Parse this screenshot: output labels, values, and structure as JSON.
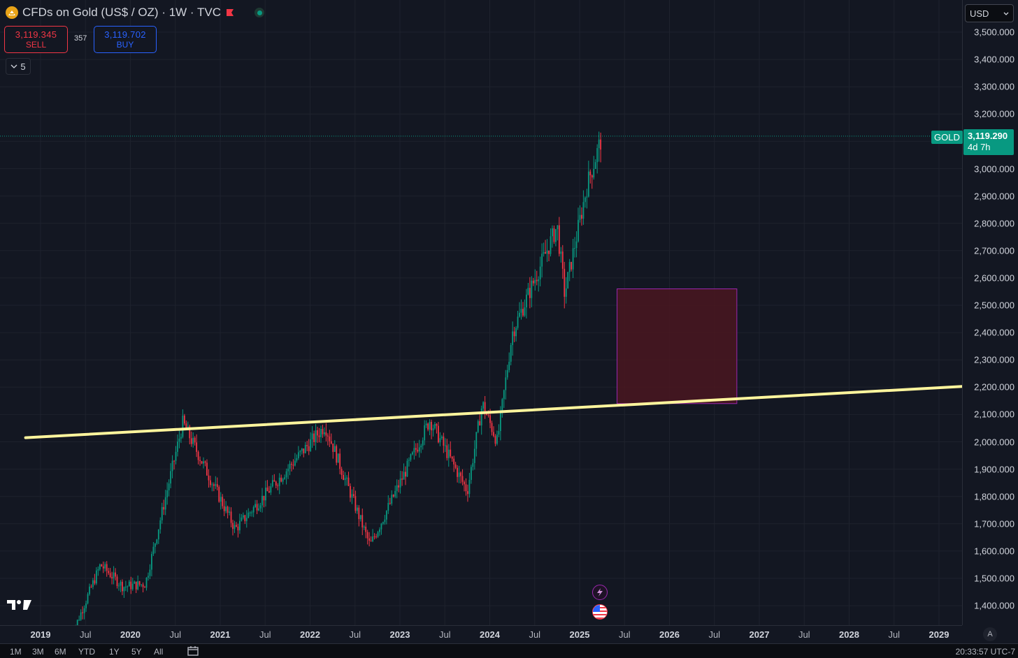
{
  "header": {
    "title": "CFDs on Gold (US$ / OZ) · 1W · TVC",
    "icon": "gold-coin-icon",
    "flag_icon": "red-flag-icon",
    "status_icon": "market-open-dot-icon"
  },
  "trade": {
    "sell_price": "3,119.345",
    "sell_label": "SELL",
    "spread": "357",
    "buy_price": "3,119.702",
    "buy_label": "BUY"
  },
  "indicators_toggle": {
    "count": "5",
    "icon": "chevron-down-icon"
  },
  "currency": {
    "value": "USD",
    "icon": "chevron-down-icon"
  },
  "last_price": {
    "symbol": "GOLD",
    "price": "3,119.290",
    "countdown": "4d 7h"
  },
  "colors": {
    "background": "#131722",
    "up_candle": "#089981",
    "down_candle": "#f23645",
    "trendline": "#fff59d",
    "zone_fill": "#4a1620",
    "zone_border": "#9c27b0"
  },
  "price_scale": [
    "3,500.000",
    "3,400.000",
    "3,300.000",
    "3,200.000",
    "3,000.000",
    "2,900.000",
    "2,800.000",
    "2,700.000",
    "2,600.000",
    "2,500.000",
    "2,400.000",
    "2,300.000",
    "2,200.000",
    "2,100.000",
    "2,000.000",
    "1,900.000",
    "1,800.000",
    "1,700.000",
    "1,600.000",
    "1,500.000",
    "1,400.000"
  ],
  "time_axis": [
    {
      "label": "2019",
      "type": "year"
    },
    {
      "label": "Jul",
      "type": "month"
    },
    {
      "label": "2020",
      "type": "year"
    },
    {
      "label": "Jul",
      "type": "month"
    },
    {
      "label": "2021",
      "type": "year"
    },
    {
      "label": "Jul",
      "type": "month"
    },
    {
      "label": "2022",
      "type": "year"
    },
    {
      "label": "Jul",
      "type": "month"
    },
    {
      "label": "2023",
      "type": "year"
    },
    {
      "label": "Jul",
      "type": "month"
    },
    {
      "label": "2024",
      "type": "year"
    },
    {
      "label": "Jul",
      "type": "month"
    },
    {
      "label": "2025",
      "type": "year"
    },
    {
      "label": "Jul",
      "type": "month"
    },
    {
      "label": "2026",
      "type": "year"
    },
    {
      "label": "Jul",
      "type": "month"
    },
    {
      "label": "2027",
      "type": "year"
    },
    {
      "label": "Jul",
      "type": "month"
    },
    {
      "label": "2028",
      "type": "year"
    },
    {
      "label": "Jul",
      "type": "month"
    },
    {
      "label": "2029",
      "type": "year"
    }
  ],
  "chart_data": {
    "type": "candlestick",
    "interval": "1W",
    "y_range": [
      1350,
      3520
    ],
    "x_range": [
      "2018-11",
      "2029-09"
    ],
    "key_points": [
      {
        "date": "2019-05",
        "price": 1280
      },
      {
        "date": "2019-09",
        "price": 1550
      },
      {
        "date": "2019-12",
        "price": 1470
      },
      {
        "date": "2020-03",
        "price": 1480
      },
      {
        "date": "2020-08",
        "price": 2070
      },
      {
        "date": "2021-03",
        "price": 1680
      },
      {
        "date": "2022-03",
        "price": 2060
      },
      {
        "date": "2022-09",
        "price": 1620
      },
      {
        "date": "2023-05",
        "price": 2080
      },
      {
        "date": "2023-10",
        "price": 1820
      },
      {
        "date": "2023-12",
        "price": 2140
      },
      {
        "date": "2024-02",
        "price": 2000
      },
      {
        "date": "2024-04",
        "price": 2400
      },
      {
        "date": "2024-10",
        "price": 2790
      },
      {
        "date": "2024-11",
        "price": 2540
      },
      {
        "date": "2025-02",
        "price": 2940
      },
      {
        "date": "2025-04",
        "price": 3119
      }
    ],
    "trendline": {
      "start": {
        "date": "2018-11",
        "price": 2015
      },
      "end": {
        "date": "2029-09",
        "price": 2210
      }
    },
    "zone": {
      "date_start": "2025-06",
      "date_end": "2026-10",
      "price_low": 2140,
      "price_high": 2560
    },
    "horizontal_line": {
      "price": 3119.29
    }
  },
  "toolbar": {
    "timeframes": [
      "1M",
      "3M",
      "6M",
      "YTD",
      "1Y",
      "5Y",
      "All"
    ],
    "calendar_icon": "calendar-icon",
    "clock": "20:33:57 UTC-7"
  },
  "auto_scale": "A"
}
